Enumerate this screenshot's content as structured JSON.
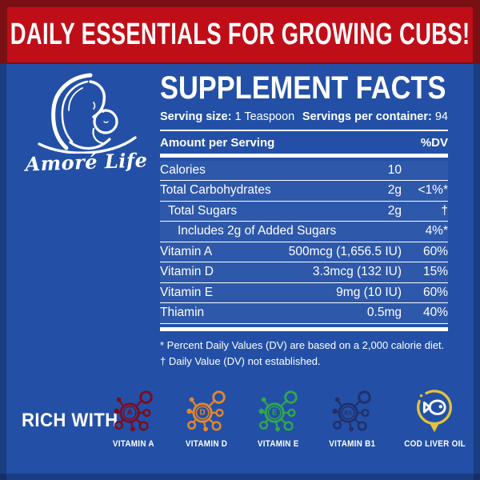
{
  "banner": {
    "text": "DAILY ESSENTIALS FOR GROWING CUBS!"
  },
  "logo": {
    "brand": "Amoré Life",
    "illustration": "mother-and-baby-line-art"
  },
  "supplement_facts": {
    "title": "SUPPLEMENT FACTS",
    "serving_size_label": "Serving size:",
    "serving_size_value": "1 Teaspoon",
    "servings_label": "Servings per container:",
    "servings_value": "94",
    "amount_header": "Amount per Serving",
    "dv_header": "%DV",
    "rows": [
      {
        "name": "Calories",
        "amount": "10",
        "dv": "",
        "indent": 0
      },
      {
        "name": "Total Carbohydrates",
        "amount": "2g",
        "dv": "<1%*",
        "indent": 0
      },
      {
        "name": "Total Sugars",
        "amount": "2g",
        "dv": "†",
        "indent": 1
      },
      {
        "name": "Includes 2g of Added Sugars",
        "amount": "",
        "dv": "4%*",
        "indent": 2
      },
      {
        "name": "Vitamin A",
        "amount": "500mcg (1,656.5 IU)",
        "dv": "60%",
        "indent": 0
      },
      {
        "name": "Vitamin D",
        "amount": "3.3mcg (132 IU)",
        "dv": "15%",
        "indent": 0
      },
      {
        "name": "Vitamin E",
        "amount": "9mg (10 IU)",
        "dv": "60%",
        "indent": 0
      },
      {
        "name": "Thiamin",
        "amount": "0.5mg",
        "dv": "40%",
        "indent": 0
      }
    ],
    "footnotes": [
      "* Percent Daily Values (DV) are based on a 2,000 calorie diet.",
      "† Daily Value (DV) not established."
    ]
  },
  "rich_with": {
    "label": "RICH WITH",
    "items": [
      {
        "label": "VITAMIN A",
        "icon": "molecule",
        "letter": "A",
        "color": "#7A0D1E"
      },
      {
        "label": "VITAMIN D",
        "icon": "molecule",
        "letter": "D",
        "color": "#E1872E"
      },
      {
        "label": "VITAMIN E",
        "icon": "molecule",
        "letter": "E",
        "color": "#2FA74D"
      },
      {
        "label": "VITAMIN B1",
        "icon": "molecule",
        "letter": "B1",
        "color": "#20306B"
      },
      {
        "label": "COD LIVER OIL",
        "icon": "fish-drop",
        "letter": "",
        "color": "#E5C23B"
      }
    ]
  },
  "colors": {
    "background_blue": "#2350A6",
    "banner_red": "#C00E18",
    "banner_frame_red": "#7A1013",
    "text_white": "#FFFFFF"
  }
}
